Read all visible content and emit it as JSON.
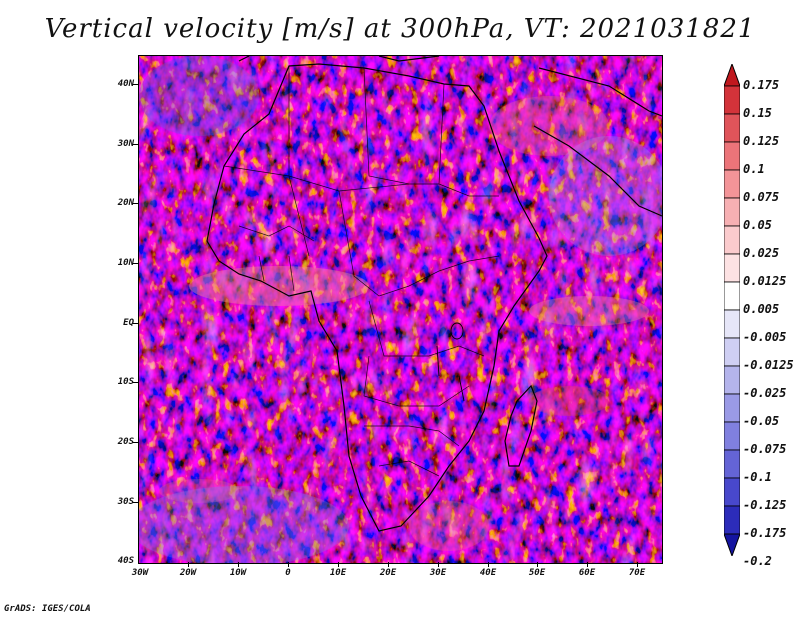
{
  "title": "Vertical velocity [m/s] at 300hPa, VT: 2021031821",
  "map": {
    "y_axis_labels": [
      "40N",
      "30N",
      "20N",
      "10N",
      "EQ",
      "10S",
      "20S",
      "30S",
      "40S"
    ],
    "x_axis_labels": [
      "30W",
      "20W",
      "10W",
      "0",
      "10E",
      "20E",
      "30E",
      "40E",
      "50E",
      "60E",
      "70E"
    ],
    "lat_range": [
      -40,
      45
    ],
    "lon_range": [
      -30,
      75
    ]
  },
  "colorbar": {
    "labels": [
      "0.175",
      "0.15",
      "0.125",
      "0.1",
      "0.075",
      "0.05",
      "0.025",
      "0.0125",
      "0.005",
      "-0.005",
      "-0.0125",
      "-0.025",
      "-0.05",
      "-0.075",
      "-0.1",
      "-0.125",
      "-0.175",
      "-0.2"
    ],
    "colors": [
      "#c0181e",
      "#d3333a",
      "#e0545a",
      "#ec7479",
      "#f39498",
      "#f7b0b3",
      "#fbcbcd",
      "#fde2e3",
      "#ffffff",
      "#e6e6f8",
      "#cfcff3",
      "#b4b4ec",
      "#9a9ae6",
      "#8080df",
      "#6464d6",
      "#4848cc",
      "#2c2cba",
      "#1414a0"
    ]
  },
  "footer": "GrADS: IGES/COLA"
}
